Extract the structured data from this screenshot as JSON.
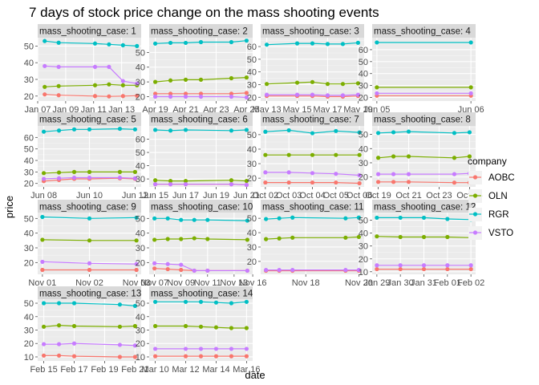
{
  "chart_data": {
    "type": "line",
    "title": "7 days of stock price change on the mass shooting events",
    "xlabel": "date",
    "ylabel": "price",
    "legend": {
      "title": "company",
      "placement": "right",
      "entries": [
        {
          "name": "AOBC",
          "color": "#F8766D"
        },
        {
          "name": "OLN",
          "color": "#7CAE00"
        },
        {
          "name": "RGR",
          "color": "#00BFC4"
        },
        {
          "name": "VSTO",
          "color": "#C77CFF"
        }
      ]
    },
    "panels": [
      {
        "strip": "mass_shooting_case: 1",
        "yticks": [
          20,
          30,
          40,
          50
        ],
        "ylim": [
          17,
          55
        ],
        "xticks": [
          "Jan 07",
          "Jan 09",
          "Jan 11",
          "Jan 13"
        ],
        "xlim": [
          0,
          7.4
        ],
        "x": [
          0.5,
          1.5,
          4.1,
          5.1,
          6.1,
          7.1
        ],
        "series": {
          "AOBC": [
            21,
            20.5,
            20,
            19.8,
            20,
            20.2
          ],
          "OLN": [
            25.5,
            26,
            26.5,
            27,
            26.5,
            26.5
          ],
          "RGR": [
            53,
            52,
            51.5,
            51,
            50.5,
            50
          ],
          "VSTO": [
            38,
            37.5,
            37.5,
            37.5,
            29,
            27.5
          ]
        }
      },
      {
        "strip": "mass_shooting_case: 2",
        "yticks": [
          20,
          30,
          40,
          50
        ],
        "ylim": [
          17,
          60
        ],
        "xticks": [
          "Apr 19",
          "Apr 21",
          "Apr 23",
          "Apr 25"
        ],
        "xlim": [
          -0.4,
          6.4
        ],
        "x": [
          0,
          1,
          2,
          3,
          5,
          6
        ],
        "series": {
          "AOBC": [
            22,
            22,
            22,
            22,
            22,
            22.5
          ],
          "OLN": [
            30,
            31,
            31.5,
            31.5,
            32.5,
            33
          ],
          "RGR": [
            56,
            56.5,
            56.5,
            57,
            57,
            58
          ],
          "VSTO": [
            20,
            20,
            20,
            20,
            20,
            19.5
          ]
        }
      },
      {
        "strip": "mass_shooting_case: 3",
        "yticks": [
          20,
          30,
          40,
          50,
          60
        ],
        "ylim": [
          17,
          67
        ],
        "xticks": [
          "May 13",
          "May 15",
          "May 17",
          "May 19"
        ],
        "xlim": [
          -0.4,
          6.4
        ],
        "x": [
          0,
          2,
          3,
          4,
          5,
          6
        ],
        "series": {
          "AOBC": [
            21,
            21,
            21,
            20.5,
            20.5,
            21
          ],
          "OLN": [
            30.5,
            31.5,
            32,
            30.5,
            30.5,
            31
          ],
          "RGR": [
            61.5,
            62.5,
            62.5,
            62,
            62,
            63
          ],
          "VSTO": [
            22,
            22,
            22,
            21.5,
            21.5,
            22
          ]
        }
      },
      {
        "strip": "mass_shooting_case: 4",
        "yticks": [
          20,
          30,
          40,
          50,
          60
        ],
        "ylim": [
          17,
          70
        ],
        "xticks": [
          "Jun 05",
          "Jun 06"
        ],
        "xlim": [
          -0.05,
          1.05
        ],
        "x": [
          0,
          1
        ],
        "series": {
          "AOBC": [
            21.5,
            21.5
          ],
          "OLN": [
            28.5,
            28.5
          ],
          "RGR": [
            66,
            66
          ],
          "VSTO": [
            23.5,
            23.5
          ]
        }
      },
      {
        "strip": "mass_shooting_case: 5",
        "yticks": [
          20,
          30,
          40,
          50,
          60
        ],
        "ylim": [
          17,
          70
        ],
        "xticks": [
          "Jun 08",
          "Jun 10",
          "Jun 12"
        ],
        "xlim": [
          -1.4,
          5.4
        ],
        "x": [
          -1,
          0,
          1,
          2,
          4,
          5
        ],
        "series": {
          "AOBC": [
            22,
            23,
            24,
            24,
            24.5,
            24
          ],
          "OLN": [
            29,
            29.5,
            30,
            30,
            30,
            30
          ],
          "RGR": [
            65,
            66,
            67,
            67,
            67.5,
            67
          ],
          "VSTO": [
            24,
            24.5,
            25,
            25,
            25,
            24.5
          ]
        }
      },
      {
        "strip": "mass_shooting_case: 6",
        "yticks": [
          30,
          40,
          50,
          60
        ],
        "ylim": [
          24,
          70
        ],
        "xticks": [
          "Jun 15",
          "Jun 17",
          "Jun 19",
          "Jun 21"
        ],
        "xlim": [
          -0.4,
          6.4
        ],
        "x": [
          0,
          1,
          2,
          5,
          6
        ],
        "series": {
          "AOBC": [
            26,
            26,
            26,
            26,
            25.5
          ],
          "OLN": [
            29,
            28.5,
            28.5,
            29,
            28.5
          ],
          "RGR": [
            67,
            66.5,
            67,
            66.5,
            67
          ],
          "VSTO": [
            26,
            26,
            26,
            26,
            25.5
          ]
        }
      },
      {
        "strip": "mass_shooting_case: 7",
        "yticks": [
          20,
          30,
          40,
          50
        ],
        "ylim": [
          14,
          56
        ],
        "xticks": [
          "Oct 02",
          "Oct 03",
          "Oct 04",
          "Oct 05",
          "Oct 06"
        ],
        "xlim": [
          -0.2,
          4.2
        ],
        "x": [
          0,
          1,
          2,
          3,
          4
        ],
        "series": {
          "AOBC": [
            17,
            17,
            17,
            17,
            16.5
          ],
          "OLN": [
            36,
            36,
            36,
            36,
            36
          ],
          "RGR": [
            52,
            53,
            51,
            52.5,
            51.5
          ],
          "VSTO": [
            24,
            24,
            23.5,
            23,
            22
          ]
        }
      },
      {
        "strip": "mass_shooting_case: 8",
        "yticks": [
          20,
          30,
          40,
          50
        ],
        "ylim": [
          13,
          56
        ],
        "xticks": [
          "Oct 19",
          "Oct 21",
          "Oct 23",
          "Oct 25"
        ],
        "xlim": [
          -0.4,
          6.4
        ],
        "x": [
          0,
          1,
          2,
          5,
          6
        ],
        "series": {
          "AOBC": [
            16.5,
            16.5,
            16.5,
            16,
            16
          ],
          "OLN": [
            33.5,
            34.5,
            34.5,
            33.5,
            34.5
          ],
          "RGR": [
            51,
            51.5,
            52,
            51,
            51.5
          ],
          "VSTO": [
            22,
            22,
            22,
            22,
            22.5
          ]
        }
      },
      {
        "strip": "mass_shooting_case: 9",
        "yticks": [
          20,
          30,
          40,
          50
        ],
        "ylim": [
          12,
          54
        ],
        "xticks": [
          "Nov 01",
          "Nov 02",
          "Nov 03"
        ],
        "xlim": [
          -0.1,
          2.1
        ],
        "x": [
          0,
          1,
          2
        ],
        "series": {
          "AOBC": [
            15,
            15,
            15
          ],
          "OLN": [
            35.5,
            35,
            35
          ],
          "RGR": [
            51,
            50,
            50.5
          ],
          "VSTO": [
            20.5,
            19.5,
            19
          ]
        }
      },
      {
        "strip": "mass_shooting_case: 10",
        "yticks": [
          20,
          30,
          40,
          50
        ],
        "ylim": [
          12,
          54
        ],
        "xticks": [
          "Nov 07",
          "Nov 09",
          "Nov 11",
          "Nov 13"
        ],
        "xlim": [
          -0.4,
          7.4
        ],
        "x": [
          0,
          1,
          2,
          3,
          4,
          7
        ],
        "series": {
          "AOBC": [
            16,
            15.5,
            15,
            14.5,
            14.5,
            14.5
          ],
          "OLN": [
            35.5,
            36,
            36,
            36.5,
            36,
            35.5
          ],
          "RGR": [
            50,
            50,
            49,
            49,
            49,
            48.5
          ],
          "VSTO": [
            19.5,
            19,
            18.5,
            14.5,
            14.5,
            14.5
          ]
        }
      },
      {
        "strip": "mass_shooting_case: 11",
        "yticks": [
          20,
          30,
          40,
          50
        ],
        "ylim": [
          11,
          54
        ],
        "xticks": [
          "Nov 16",
          "Nov 18",
          "Nov 20"
        ],
        "xlim": [
          -0.4,
          7.4
        ],
        "x": [
          0,
          1,
          2,
          6,
          7
        ],
        "series": {
          "AOBC": [
            13.5,
            13.5,
            13.5,
            13.5,
            13.5
          ],
          "OLN": [
            35.5,
            36,
            36.5,
            36.5,
            37
          ],
          "RGR": [
            49.5,
            50,
            50.5,
            50,
            50.5
          ],
          "VSTO": [
            14,
            14,
            14,
            14,
            14
          ]
        }
      },
      {
        "strip": "mass_shooting_case: 12",
        "yticks": [
          10,
          20,
          30,
          40,
          50
        ],
        "ylim": [
          8,
          56
        ],
        "xticks": [
          "Jan 29",
          "Jan 30",
          "Jan 31",
          "Feb 01",
          "Feb 02"
        ],
        "xlim": [
          -0.2,
          4.2
        ],
        "x": [
          0,
          1,
          2,
          3,
          4
        ],
        "series": {
          "AOBC": [
            12,
            12,
            12,
            12,
            12
          ],
          "OLN": [
            37.5,
            37,
            37,
            37,
            36.5
          ],
          "RGR": [
            52,
            52,
            52,
            51,
            50.5
          ],
          "VSTO": [
            15,
            15,
            15,
            15,
            15
          ]
        }
      },
      {
        "strip": "mass_shooting_case: 13",
        "yticks": [
          10,
          20,
          30,
          40,
          50
        ],
        "ylim": [
          7,
          53
        ],
        "xticks": [
          "Feb 15",
          "Feb 17",
          "Feb 19",
          "Feb 21"
        ],
        "xlim": [
          -0.4,
          6.4
        ],
        "x": [
          0,
          1,
          2,
          5,
          6
        ],
        "series": {
          "AOBC": [
            11,
            11,
            10.5,
            10,
            10
          ],
          "OLN": [
            32.5,
            33.5,
            33,
            32.5,
            33
          ],
          "RGR": [
            50,
            50,
            50,
            49,
            48
          ],
          "VSTO": [
            19.5,
            19.5,
            20,
            19,
            18.5
          ]
        }
      },
      {
        "strip": "mass_shooting_case: 14",
        "yticks": [
          10,
          20,
          30,
          40,
          50
        ],
        "ylim": [
          7,
          53
        ],
        "xticks": [
          "Mar 10",
          "Mar 12",
          "Mar 14",
          "Mar 16"
        ],
        "xlim": [
          -0.4,
          6.4
        ],
        "x": [
          0,
          2,
          3,
          4,
          5,
          6
        ],
        "series": {
          "AOBC": [
            10.5,
            10.5,
            10.5,
            10.5,
            10.5,
            10.5
          ],
          "OLN": [
            33,
            33,
            32.5,
            32,
            31.5,
            31.5
          ],
          "RGR": [
            51,
            51,
            51,
            50.5,
            50,
            51
          ],
          "VSTO": [
            16,
            16,
            16,
            16,
            16,
            16
          ]
        }
      }
    ]
  }
}
